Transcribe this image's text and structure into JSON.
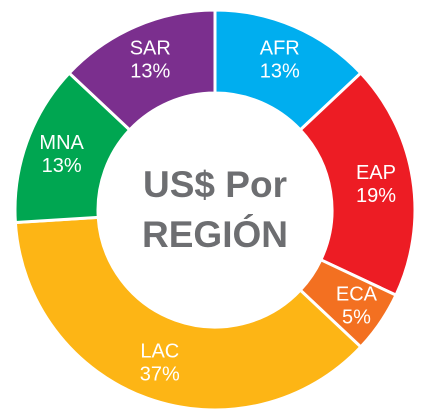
{
  "chart_data": {
    "type": "donut",
    "title": "US$ Por REGIÓN",
    "categories": [
      "AFR",
      "EAP",
      "ECA",
      "LAC",
      "MNA",
      "SAR"
    ],
    "values": [
      13,
      19,
      5,
      37,
      13,
      13
    ],
    "value_labels": [
      "13%",
      "19%",
      "5%",
      "37%",
      "13%",
      "13%"
    ],
    "colors": [
      "#00aeef",
      "#ed1c24",
      "#f37021",
      "#fdb515",
      "#00a651",
      "#7b2f8e"
    ]
  }
}
